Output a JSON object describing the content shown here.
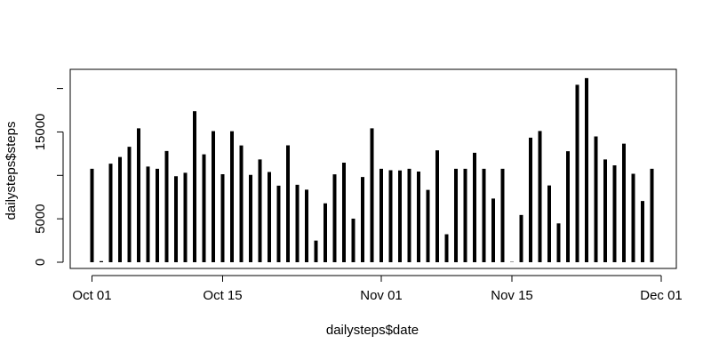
{
  "chart_data": {
    "type": "bar",
    "style": "histogram-like vertical lines (R type='h')",
    "title": "",
    "xlabel": "dailysteps$date",
    "ylabel": "dailysteps$steps",
    "x_ticks": [
      "Oct 01",
      "Oct 15",
      "Nov 01",
      "Nov 15",
      "Dec 01"
    ],
    "y_ticks": [
      "0",
      "5000",
      "15000"
    ],
    "xlim": [
      "2012-10-01",
      "2012-12-01"
    ],
    "ylim": [
      0,
      22000
    ],
    "grid": false,
    "colors": {
      "bars": "#000000",
      "axes": "#000000",
      "background": "#ffffff"
    },
    "x": [
      "2012-10-01",
      "2012-10-02",
      "2012-10-03",
      "2012-10-04",
      "2012-10-05",
      "2012-10-06",
      "2012-10-07",
      "2012-10-08",
      "2012-10-09",
      "2012-10-10",
      "2012-10-11",
      "2012-10-12",
      "2012-10-13",
      "2012-10-14",
      "2012-10-15",
      "2012-10-16",
      "2012-10-17",
      "2012-10-18",
      "2012-10-19",
      "2012-10-20",
      "2012-10-21",
      "2012-10-22",
      "2012-10-23",
      "2012-10-24",
      "2012-10-25",
      "2012-10-26",
      "2012-10-27",
      "2012-10-28",
      "2012-10-29",
      "2012-10-30",
      "2012-10-31",
      "2012-11-01",
      "2012-11-02",
      "2012-11-03",
      "2012-11-04",
      "2012-11-05",
      "2012-11-06",
      "2012-11-07",
      "2012-11-08",
      "2012-11-09",
      "2012-11-10",
      "2012-11-11",
      "2012-11-12",
      "2012-11-13",
      "2012-11-14",
      "2012-11-15",
      "2012-11-16",
      "2012-11-17",
      "2012-11-18",
      "2012-11-19",
      "2012-11-20",
      "2012-11-21",
      "2012-11-22",
      "2012-11-23",
      "2012-11-24",
      "2012-11-25",
      "2012-11-26",
      "2012-11-27",
      "2012-11-28",
      "2012-11-29",
      "2012-11-30"
    ],
    "values": [
      10766,
      126,
      11352,
      12116,
      13294,
      15420,
      11015,
      10766,
      12811,
      9900,
      10304,
      17382,
      12426,
      15098,
      10139,
      15084,
      13452,
      10056,
      11829,
      10395,
      8821,
      13460,
      8918,
      8355,
      2492,
      6778,
      10119,
      11458,
      5018,
      9819,
      15414,
      10766,
      10600,
      10571,
      10766,
      10439,
      8334,
      12883,
      3219,
      10766,
      10766,
      12608,
      10765,
      7336,
      10766,
      41,
      5441,
      14339,
      15110,
      8841,
      4472,
      12787,
      20427,
      21194,
      14478,
      11834,
      11162,
      13646,
      10183,
      7047,
      10766
    ]
  }
}
